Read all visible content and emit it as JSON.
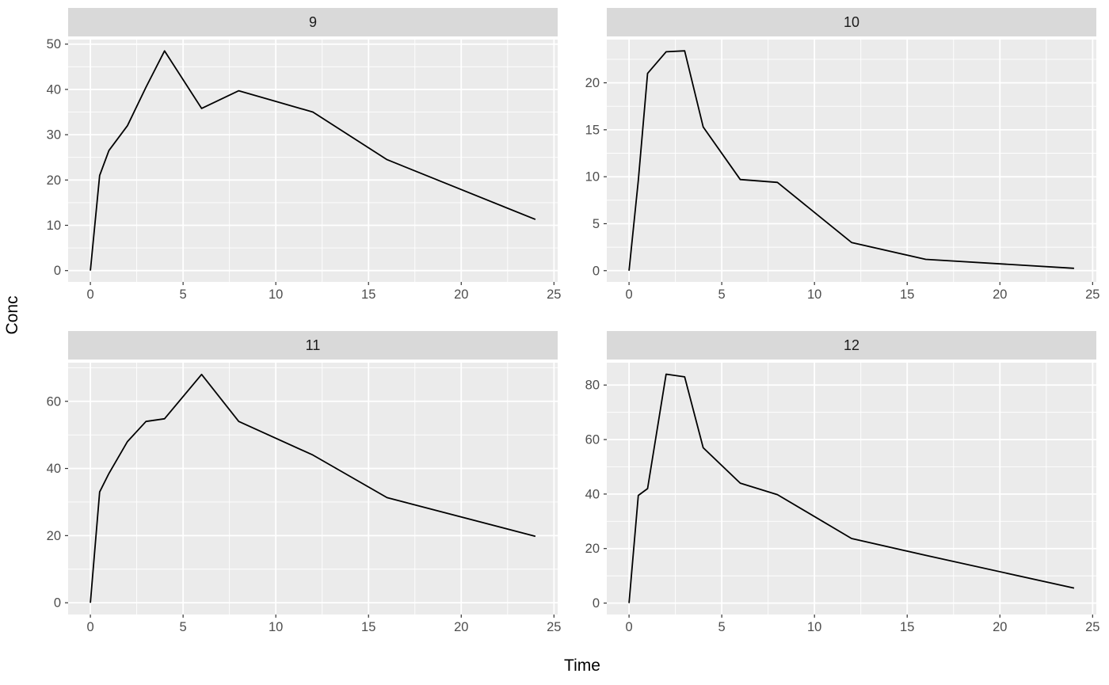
{
  "chart_data": {
    "type": "line",
    "title": "",
    "xlabel": "Time",
    "ylabel": "Conc",
    "legend": "none",
    "facet_layout": "2x2 grid, free scales, ggplot gray theme",
    "style": {
      "panel_bg": "#EBEBEB",
      "strip_bg": "#D9D9D9",
      "strip_text": "#1a1a1a",
      "grid_major": "#FFFFFF",
      "grid_minor": "#FFFFFF",
      "line_color": "#000000",
      "tick_text": "#4D4D4D",
      "tick_mark": "#333333",
      "axis_title": "#000000"
    },
    "facets": [
      {
        "label": "9",
        "x": [
          0,
          0.5,
          1,
          2,
          3,
          4,
          6,
          8,
          12,
          16,
          24
        ],
        "y": [
          0,
          21,
          26.5,
          32,
          40.5,
          48.5,
          35.8,
          39.7,
          35,
          24.5,
          11.3
        ],
        "x_ticks": [
          0,
          5,
          10,
          15,
          20,
          25
        ],
        "y_ticks": [
          0,
          10,
          20,
          30,
          40,
          50
        ],
        "xlim": [
          -1.2,
          25.2
        ],
        "ylim": [
          -2.5,
          51
        ]
      },
      {
        "label": "10",
        "x": [
          0,
          0.5,
          1,
          2,
          3,
          4,
          6,
          8,
          12,
          16,
          24
        ],
        "y": [
          0,
          9.6,
          21,
          23.3,
          23.4,
          15.3,
          9.7,
          9.4,
          3.0,
          1.2,
          0.25
        ],
        "x_ticks": [
          0,
          5,
          10,
          15,
          20,
          25
        ],
        "y_ticks": [
          0,
          5,
          10,
          15,
          20
        ],
        "xlim": [
          -1.2,
          25.2
        ],
        "ylim": [
          -1.2,
          24.6
        ]
      },
      {
        "label": "11",
        "x": [
          0,
          0.5,
          1,
          2,
          3,
          4,
          6,
          8,
          12,
          16,
          24
        ],
        "y": [
          0,
          33,
          38.5,
          48,
          54,
          54.8,
          68,
          54,
          44,
          31.3,
          19.8
        ],
        "x_ticks": [
          0,
          5,
          10,
          15,
          20,
          25
        ],
        "y_ticks": [
          0,
          20,
          40,
          60
        ],
        "xlim": [
          -1.2,
          25.2
        ],
        "ylim": [
          -3.5,
          71.5
        ]
      },
      {
        "label": "12",
        "x": [
          0,
          0.5,
          1,
          2,
          3,
          4,
          6,
          8,
          12,
          16,
          24
        ],
        "y": [
          0,
          39.5,
          42,
          84,
          83,
          57,
          44,
          39.8,
          23.7,
          17.5,
          5.5
        ],
        "x_ticks": [
          0,
          5,
          10,
          15,
          20,
          25
        ],
        "y_ticks": [
          0,
          20,
          40,
          60,
          80
        ],
        "xlim": [
          -1.2,
          25.2
        ],
        "ylim": [
          -4.2,
          88.2
        ]
      }
    ]
  }
}
